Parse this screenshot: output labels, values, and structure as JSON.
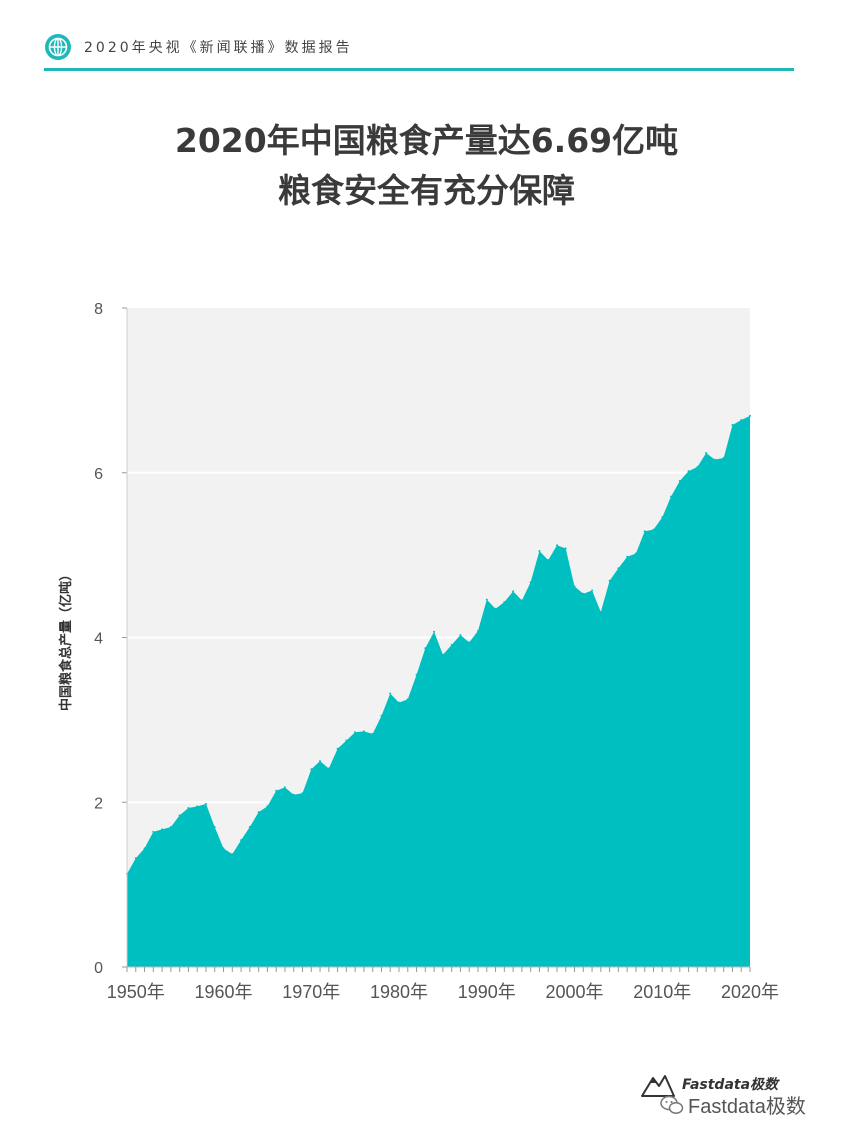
{
  "header": {
    "text": "2020年央视《新闻联播》数据报告",
    "accent": "#1fb8b8"
  },
  "title": {
    "line1": "2020年中国粮食产量达6.69亿吨",
    "line2": "粮食安全有充分保障"
  },
  "chart_data": {
    "type": "area",
    "ylabel": "中国粮食总产量（亿吨）",
    "xlabel": "",
    "ylim": [
      0,
      8
    ],
    "xlim": [
      1949,
      2020
    ],
    "y_ticks": [
      "0",
      "2",
      "4",
      "6",
      "8"
    ],
    "x_ticks": [
      {
        "year": 1950,
        "label": "1950年"
      },
      {
        "year": 1960,
        "label": "1960年"
      },
      {
        "year": 1970,
        "label": "1970年"
      },
      {
        "year": 1980,
        "label": "1980年"
      },
      {
        "year": 1990,
        "label": "1990年"
      },
      {
        "year": 2000,
        "label": "2000年"
      },
      {
        "year": 2010,
        "label": "2010年"
      },
      {
        "year": 2020,
        "label": "2020年"
      }
    ],
    "grid": true,
    "colors": {
      "fill": "#00bfc0",
      "plot_background": "#f2f2f2",
      "gridline": "#ffffff"
    },
    "x": [
      1949,
      1950,
      1951,
      1952,
      1953,
      1954,
      1955,
      1956,
      1957,
      1958,
      1959,
      1960,
      1961,
      1962,
      1963,
      1964,
      1965,
      1966,
      1967,
      1968,
      1969,
      1970,
      1971,
      1972,
      1973,
      1974,
      1975,
      1976,
      1977,
      1978,
      1979,
      1980,
      1981,
      1982,
      1983,
      1984,
      1985,
      1986,
      1987,
      1988,
      1989,
      1990,
      1991,
      1992,
      1993,
      1994,
      1995,
      1996,
      1997,
      1998,
      1999,
      2000,
      2001,
      2002,
      2003,
      2004,
      2005,
      2006,
      2007,
      2008,
      2009,
      2010,
      2011,
      2012,
      2013,
      2014,
      2015,
      2016,
      2017,
      2018,
      2019,
      2020
    ],
    "values": [
      1.13,
      1.32,
      1.44,
      1.64,
      1.67,
      1.7,
      1.84,
      1.93,
      1.95,
      1.98,
      1.7,
      1.44,
      1.37,
      1.54,
      1.7,
      1.88,
      1.95,
      2.14,
      2.18,
      2.09,
      2.11,
      2.4,
      2.5,
      2.41,
      2.65,
      2.75,
      2.85,
      2.86,
      2.83,
      3.05,
      3.32,
      3.21,
      3.25,
      3.55,
      3.87,
      4.07,
      3.79,
      3.91,
      4.03,
      3.94,
      4.08,
      4.46,
      4.35,
      4.43,
      4.56,
      4.45,
      4.67,
      5.05,
      4.94,
      5.12,
      5.08,
      4.62,
      4.53,
      4.57,
      4.31,
      4.69,
      4.84,
      4.98,
      5.02,
      5.29,
      5.31,
      5.46,
      5.71,
      5.9,
      6.02,
      6.07,
      6.24,
      6.16,
      6.18,
      6.58,
      6.64,
      6.69
    ]
  },
  "footer": {
    "brand": "Fastdata极数",
    "wechat": "Fastdata极数"
  }
}
